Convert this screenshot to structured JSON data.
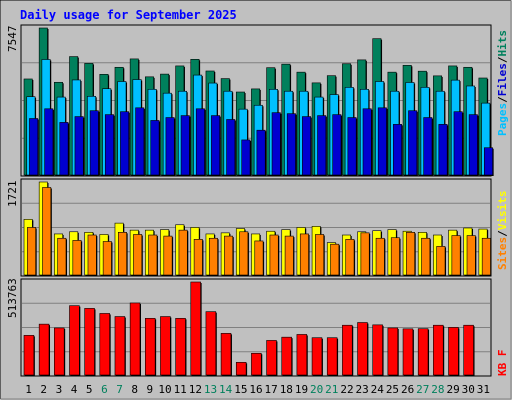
{
  "chart_data": {
    "type": "bar",
    "title": "Daily usage for September 2025",
    "days": [
      "1",
      "2",
      "3",
      "4",
      "5",
      "6",
      "7",
      "8",
      "9",
      "10",
      "11",
      "12",
      "13",
      "14",
      "15",
      "16",
      "17",
      "18",
      "19",
      "20",
      "21",
      "22",
      "23",
      "24",
      "25",
      "26",
      "27",
      "28",
      "29",
      "30",
      "31"
    ],
    "weekend_days": [
      "6",
      "7",
      "13",
      "14",
      "20",
      "21",
      "27",
      "28"
    ],
    "colors": {
      "hits": "#00805c",
      "files": "#00c0ff",
      "pages": "#0000d0",
      "visits": "#ffff00",
      "sites": "#ff8000",
      "kbytes": "#ff0000",
      "weekday_label": "#000000",
      "weekend_label": "#00805c"
    },
    "legend": {
      "hits": "Hits",
      "files": "Files",
      "pages": "Pages",
      "visits": "Visits",
      "sites": "Sites",
      "kbytes": "KB F",
      "sep": "/"
    },
    "panels": [
      {
        "name": "hits-files-pages",
        "ymax_label": "7547",
        "ymax": 7547,
        "series": [
          {
            "name": "Hits",
            "color": "#00805c",
            "values": [
              4930,
              7547,
              4760,
              6080,
              5730,
              5170,
              5530,
              5960,
              5040,
              5180,
              5600,
              5940,
              5340,
              4950,
              4260,
              4420,
              5510,
              5690,
              5280,
              4730,
              5100,
              5710,
              5910,
              7000,
              5280,
              5630,
              5330,
              5090,
              5600,
              5530,
              4980
            ]
          },
          {
            "name": "Files",
            "color": "#00c0ff",
            "values": [
              4020,
              5930,
              4000,
              4880,
              4040,
              4430,
              4800,
              4900,
              4400,
              4200,
              4300,
              5130,
              4720,
              4300,
              3380,
              3580,
              4400,
              4300,
              4300,
              4000,
              4130,
              4500,
              4400,
              4800,
              4300,
              4750,
              4500,
              4300,
              4870,
              4570,
              3690
            ]
          },
          {
            "name": "Pages",
            "color": "#0000d0",
            "values": [
              2900,
              3400,
              2700,
              3000,
              3300,
              3100,
              3250,
              3450,
              2800,
              2950,
              3050,
              3400,
              3050,
              2850,
              1800,
              2300,
              3200,
              3150,
              3000,
              3050,
              3100,
              2950,
              3400,
              3450,
              2600,
              3300,
              2950,
              2600,
              3250,
              3100,
              1400
            ]
          }
        ]
      },
      {
        "name": "visits-sites",
        "ymax_label": "1721",
        "ymax": 1721,
        "series": [
          {
            "name": "Visits",
            "color": "#ffff00",
            "values": [
              1030,
              1721,
              760,
              800,
              790,
              750,
              960,
              830,
              830,
              840,
              930,
              880,
              760,
              780,
              860,
              760,
              810,
              840,
              880,
              900,
              600,
              740,
              800,
              820,
              840,
              810,
              790,
              740,
              830,
              870,
              850
            ]
          },
          {
            "name": "Sites",
            "color": "#ff8000",
            "values": [
              880,
              1620,
              680,
              640,
              740,
              620,
              790,
              750,
              740,
              720,
              830,
              660,
              680,
              720,
              800,
              630,
              740,
              720,
              760,
              750,
              570,
              660,
              780,
              680,
              690,
              790,
              680,
              530,
              730,
              730,
              680
            ]
          }
        ]
      },
      {
        "name": "kbytes",
        "ymax_label": "513763",
        "ymax": 513763,
        "series": [
          {
            "name": "KB F",
            "color": "#ff0000",
            "values": [
              219000,
              281000,
              260000,
              383000,
              368000,
              340000,
              323000,
              398000,
              313000,
              323000,
              313000,
              513763,
              350000,
              230000,
              70000,
              120000,
              191000,
              209000,
              224000,
              206000,
              206000,
              275000,
              290000,
              277000,
              260000,
              255000,
              256000,
              275000,
              263000,
              275000,
              0
            ]
          }
        ]
      }
    ]
  }
}
